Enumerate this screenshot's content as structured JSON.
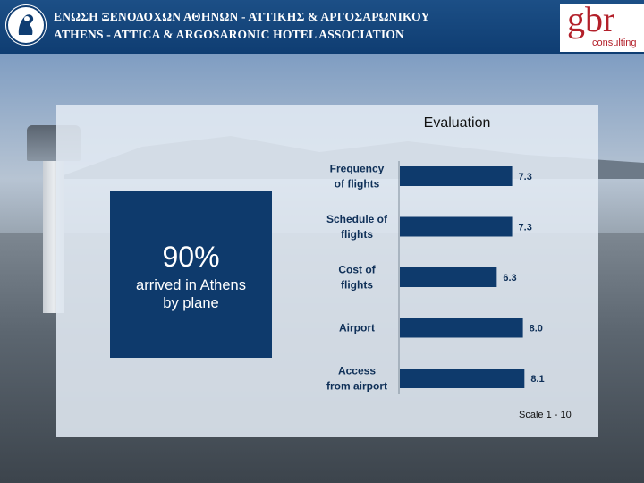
{
  "header": {
    "association_greek": "ΕΝΩΣΗ ΞΕΝΟΔΟΧΩΝ ΑΘΗΝΩΝ - ΑΤΤΙΚΗΣ & ΑΡΓΟΣΑΡΩΝΙΚΟΥ",
    "association_english": "ATHENS - ATTICA & ARGOSARONIC HOTEL ASSOCIATION",
    "brand": "gbr",
    "brand_sub": "consulting"
  },
  "callout": {
    "value": "90%",
    "text_line1": "arrived in Athens",
    "text_line2": "by plane"
  },
  "scale_note": "Scale 1 - 10",
  "colors": {
    "header_blue": "#0f3d72",
    "bar_navy": "#0e3a6c",
    "brand_red": "#b3202a"
  },
  "chart_data": {
    "type": "bar",
    "orientation": "horizontal",
    "title": "Evaluation",
    "categories": [
      [
        "Frequency",
        "of flights"
      ],
      [
        "Schedule of",
        "flights"
      ],
      [
        "Cost of",
        "flights"
      ],
      [
        "Airport"
      ],
      [
        "Access",
        "from airport"
      ]
    ],
    "values": [
      7.3,
      7.3,
      6.3,
      8.0,
      8.1
    ],
    "value_labels": [
      "7.3",
      "7.3",
      "6.3",
      "8.0",
      "8.1"
    ],
    "xlim": [
      0,
      10
    ],
    "grid": false,
    "legend": "none"
  }
}
